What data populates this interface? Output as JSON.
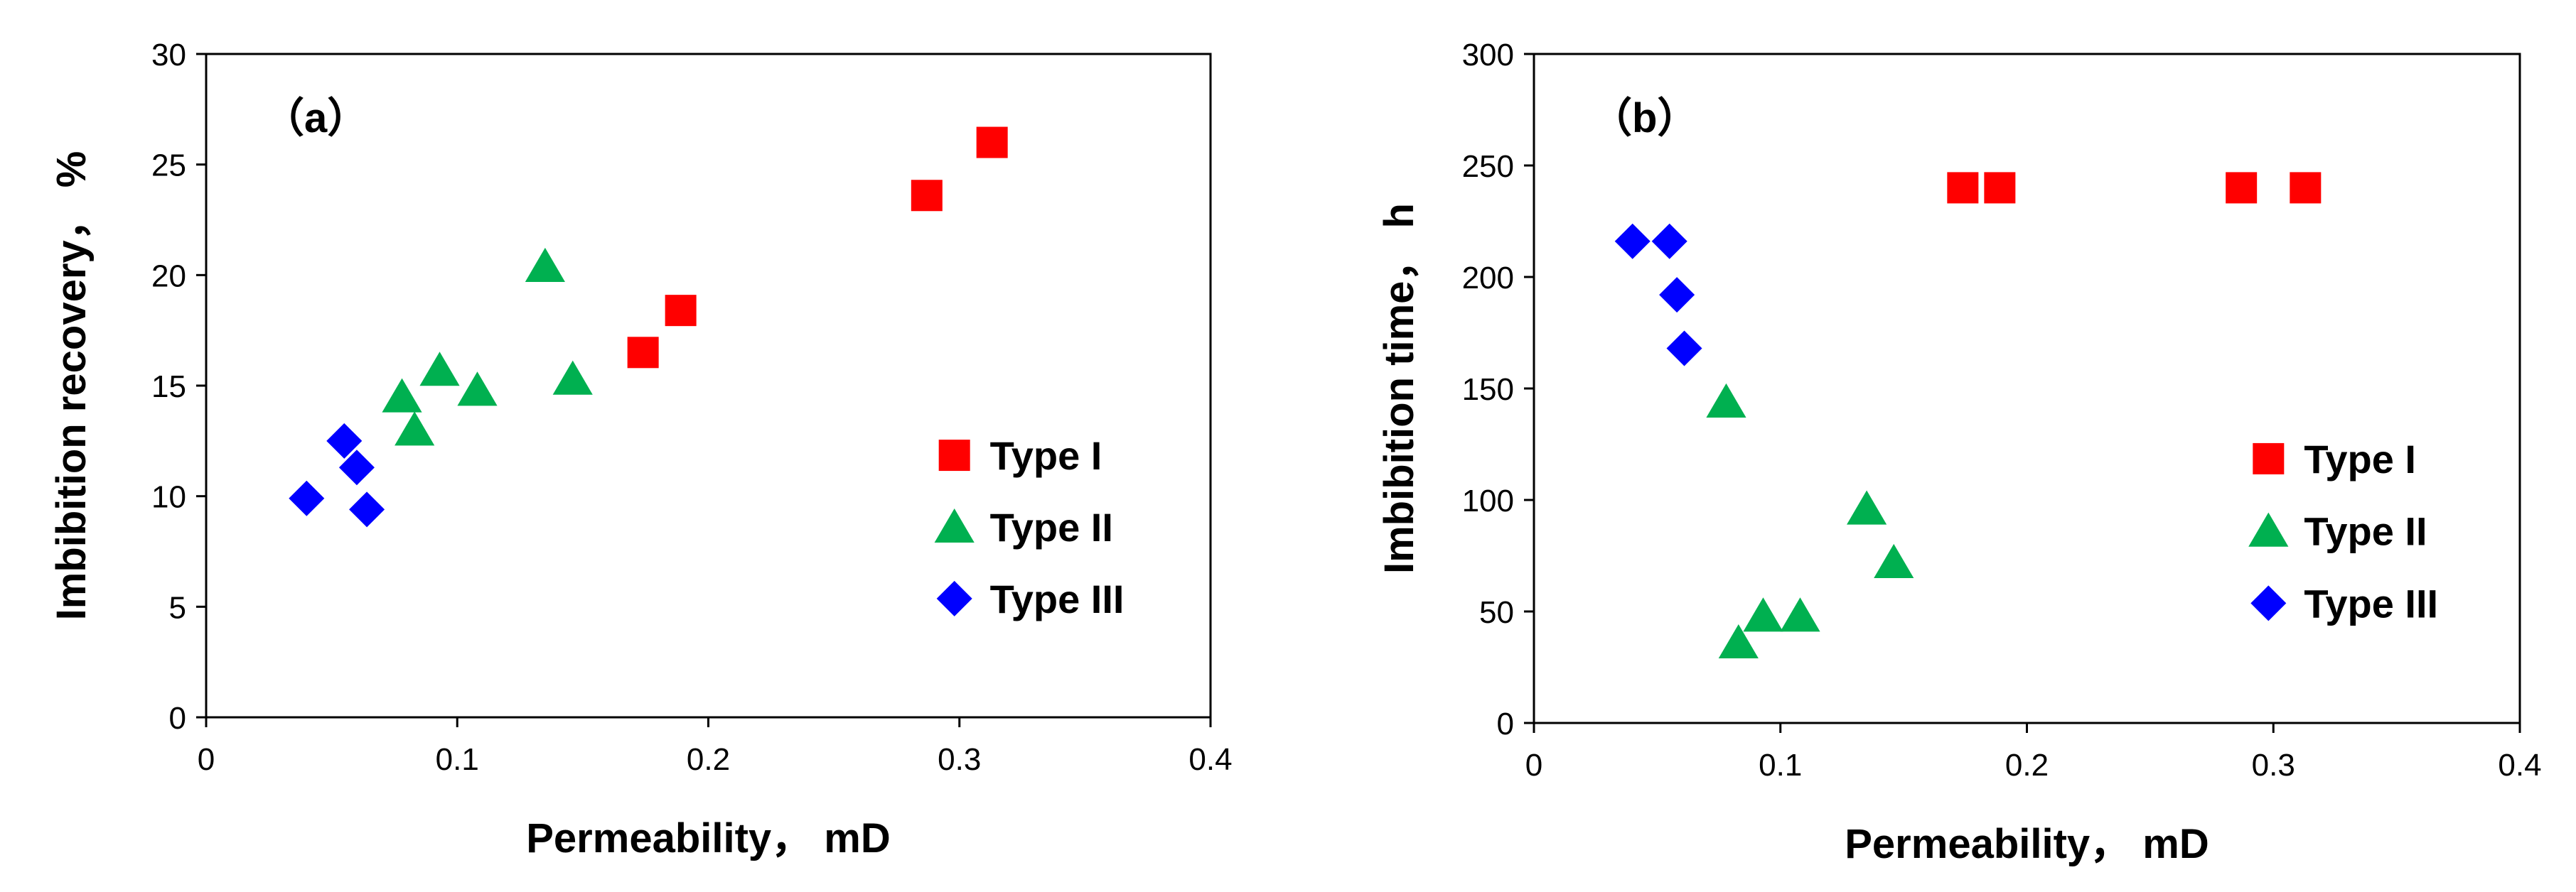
{
  "chart_data": [
    {
      "type": "scatter",
      "panel_label": "（a）",
      "xlabel": "Permeability， mD",
      "ylabel": "Imbibition recovery， %",
      "xlim": [
        0,
        0.4
      ],
      "ylim": [
        0,
        30
      ],
      "xticks": [
        "0",
        "0.1",
        "0.2",
        "0.3",
        "0.4"
      ],
      "yticks": [
        "0",
        "5",
        "10",
        "15",
        "20",
        "25",
        "30"
      ],
      "legend_position": "bottom-right",
      "series": [
        {
          "name": "Type I",
          "marker": "square",
          "color": "#ff0000",
          "points": [
            [
              0.174,
              16.5
            ],
            [
              0.189,
              18.4
            ],
            [
              0.287,
              23.6
            ],
            [
              0.313,
              26.0
            ]
          ]
        },
        {
          "name": "Type II",
          "marker": "triangle",
          "color": "#00b050",
          "points": [
            [
              0.078,
              14.5
            ],
            [
              0.083,
              13.0
            ],
            [
              0.093,
              15.7
            ],
            [
              0.108,
              14.8
            ],
            [
              0.135,
              20.4
            ],
            [
              0.146,
              15.3
            ]
          ]
        },
        {
          "name": "Type III",
          "marker": "diamond",
          "color": "#0000ff",
          "points": [
            [
              0.04,
              9.9
            ],
            [
              0.055,
              12.5
            ],
            [
              0.06,
              11.3
            ],
            [
              0.064,
              9.4
            ]
          ]
        }
      ]
    },
    {
      "type": "scatter",
      "panel_label": "（b）",
      "xlabel": "Permeability， mD",
      "ylabel": "Imbibition time， h",
      "xlim": [
        0,
        0.4
      ],
      "ylim": [
        0,
        300
      ],
      "xticks": [
        "0",
        "0.1",
        "0.2",
        "0.3",
        "0.4"
      ],
      "yticks": [
        "0",
        "50",
        "100",
        "150",
        "200",
        "250",
        "300"
      ],
      "legend_position": "bottom-right",
      "series": [
        {
          "name": "Type I",
          "marker": "square",
          "color": "#ff0000",
          "points": [
            [
              0.174,
              240
            ],
            [
              0.189,
              240
            ],
            [
              0.287,
              240
            ],
            [
              0.313,
              240
            ]
          ]
        },
        {
          "name": "Type II",
          "marker": "triangle",
          "color": "#00b050",
          "points": [
            [
              0.078,
              144
            ],
            [
              0.083,
              36
            ],
            [
              0.093,
              48
            ],
            [
              0.108,
              48
            ],
            [
              0.135,
              96
            ],
            [
              0.146,
              72
            ]
          ]
        },
        {
          "name": "Type III",
          "marker": "diamond",
          "color": "#0000ff",
          "points": [
            [
              0.04,
              216
            ],
            [
              0.055,
              216
            ],
            [
              0.058,
              192
            ],
            [
              0.061,
              168
            ]
          ]
        }
      ]
    }
  ]
}
